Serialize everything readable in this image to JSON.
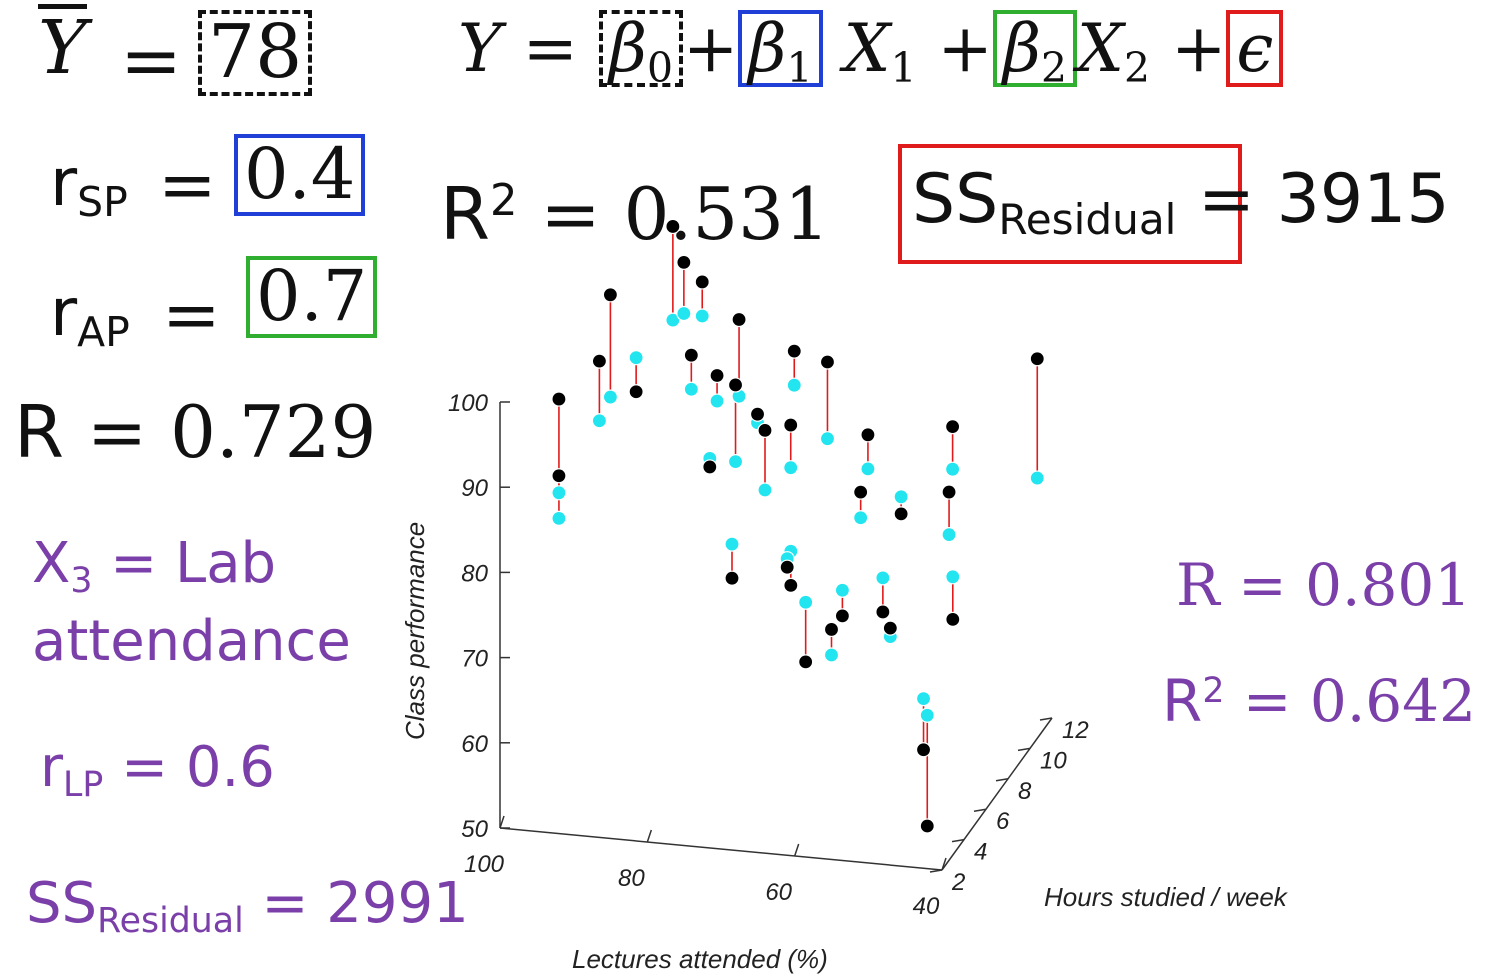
{
  "left_stats": {
    "ybar_symbol": "Y",
    "ybar_value": "78",
    "r_sp_label": "r",
    "r_sp_sub": "SP",
    "r_sp_value": "0.4",
    "r_ap_label": "r",
    "r_ap_sub": "AP",
    "r_ap_value": "0.7",
    "r_label": "R",
    "r_value": "0.729"
  },
  "equation": {
    "lhs": "Y",
    "b0": "β",
    "b0_sub": "0",
    "b1": "β",
    "b1_sub": "1",
    "x1": "X",
    "x1_sub": "1",
    "b2": "β",
    "b2_sub": "2",
    "x2": "X",
    "x2_sub": "2",
    "eps": "ϵ",
    "eq": "=",
    "plus": "+"
  },
  "r2_top": {
    "label": "R",
    "sup": "2",
    "value": "0.531"
  },
  "ss_top": {
    "label": "SS",
    "sub": "Residual",
    "value": "3915"
  },
  "lab": {
    "x3_label": "X",
    "x3_sub": "3",
    "x3_text": "= Lab",
    "x3_text2": "attendance",
    "r_lp_label": "r",
    "r_lp_sub": "LP",
    "r_lp_value": "= 0.6",
    "ss_label": "SS",
    "ss_sub": "Residual",
    "ss_value": "= 2991"
  },
  "right_stats": {
    "r_text": "R = 0.801",
    "r2_label": "R",
    "r2_sup": "2",
    "r2_value": "= 0.642"
  },
  "chart_data": {
    "type": "scatter",
    "subtype": "3d-scatter-with-residuals",
    "zlabel": "Class performance",
    "xlabel": "Lectures attended (%)",
    "ylabel": "Hours studied / week",
    "z_ticks": [
      "50",
      "60",
      "70",
      "80",
      "90",
      "100"
    ],
    "x_ticks": [
      "100",
      "80",
      "60",
      "40"
    ],
    "y_ticks": [
      "2",
      "4",
      "6",
      "8",
      "10",
      "12"
    ],
    "zlim": [
      50,
      100
    ],
    "xlim": [
      100,
      40
    ],
    "ylim": [
      2,
      12
    ],
    "colors": {
      "observed": "#000000",
      "predicted": "#22e5f0",
      "residual": "#e01b1b"
    },
    "points": [
      {
        "x": 92,
        "y": 2,
        "obs": 101,
        "pred": 90
      },
      {
        "x": 92,
        "y": 2,
        "obs": 92,
        "pred": 87
      },
      {
        "x": 88,
        "y": 4,
        "obs": 110,
        "pred": 98
      },
      {
        "x": 88,
        "y": 3,
        "obs": 104,
        "pred": 97
      },
      {
        "x": 86,
        "y": 5,
        "obs": 97,
        "pred": 101
      },
      {
        "x": 84,
        "y": 7,
        "obs": 113,
        "pred": 102
      },
      {
        "x": 84,
        "y": 8,
        "obs": 107,
        "pred": 101
      },
      {
        "x": 83,
        "y": 9,
        "obs": 103,
        "pred": 99
      },
      {
        "x": 80,
        "y": 6,
        "obs": 100,
        "pred": 96
      },
      {
        "x": 78,
        "y": 7,
        "obs": 96,
        "pred": 93
      },
      {
        "x": 78,
        "y": 9,
        "obs": 99,
        "pred": 90
      },
      {
        "x": 76,
        "y": 5,
        "obs": 89,
        "pred": 90
      },
      {
        "x": 74,
        "y": 6,
        "obs": 97,
        "pred": 88
      },
      {
        "x": 74,
        "y": 8,
        "obs": 90,
        "pred": 89
      },
      {
        "x": 72,
        "y": 10,
        "obs": 94,
        "pred": 90
      },
      {
        "x": 70,
        "y": 6,
        "obs": 92,
        "pred": 85
      },
      {
        "x": 70,
        "y": 3,
        "obs": 80,
        "pred": 84
      },
      {
        "x": 68,
        "y": 7,
        "obs": 91,
        "pred": 86
      },
      {
        "x": 66,
        "y": 9,
        "obs": 95,
        "pred": 86
      },
      {
        "x": 65,
        "y": 5,
        "obs": 76,
        "pred": 80
      },
      {
        "x": 64,
        "y": 4,
        "obs": 80,
        "pred": 81
      },
      {
        "x": 62,
        "y": 10,
        "obs": 85,
        "pred": 81
      },
      {
        "x": 60,
        "y": 3,
        "obs": 71,
        "pred": 78
      },
      {
        "x": 60,
        "y": 8,
        "obs": 82,
        "pred": 79
      },
      {
        "x": 58,
        "y": 5,
        "obs": 73,
        "pred": 76
      },
      {
        "x": 56,
        "y": 9,
        "obs": 78,
        "pred": 80
      },
      {
        "x": 55,
        "y": 2,
        "obs": 77,
        "pred": 74
      },
      {
        "x": 54,
        "y": 6,
        "obs": 72,
        "pred": 76
      },
      {
        "x": 52,
        "y": 11,
        "obs": 85,
        "pred": 80
      },
      {
        "x": 50,
        "y": 4,
        "obs": 74,
        "pred": 73
      },
      {
        "x": 48,
        "y": 8,
        "obs": 83,
        "pred": 78
      },
      {
        "x": 46,
        "y": 7,
        "obs": 70,
        "pred": 75
      },
      {
        "x": 44,
        "y": 3,
        "obs": 62,
        "pred": 68
      },
      {
        "x": 42,
        "y": 12,
        "obs": 92,
        "pred": 78
      },
      {
        "x": 42,
        "y": 2,
        "obs": 55,
        "pred": 68
      }
    ]
  }
}
